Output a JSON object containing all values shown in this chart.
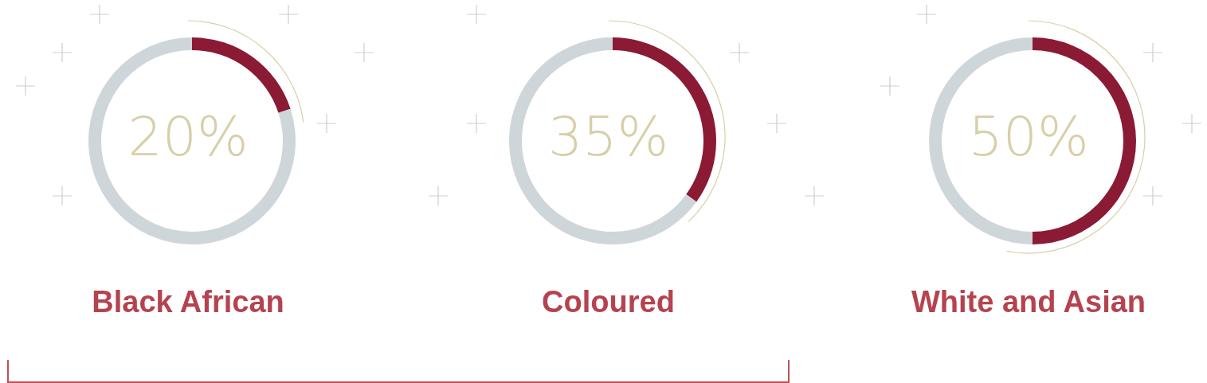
{
  "chart_data": [
    {
      "type": "donut",
      "title": "Black African",
      "categories": [
        null,
        null
      ],
      "values": [
        20,
        80
      ],
      "colors": [
        "#8b1a35",
        "#cfd6d9"
      ],
      "annotations": [
        "20%"
      ]
    },
    {
      "type": "donut",
      "title": "Coloured",
      "categories": [
        null,
        null
      ],
      "values": [
        35,
        65
      ],
      "colors": [
        "#8b1a35",
        "#cfd6d9"
      ],
      "annotations": [
        "35%"
      ]
    },
    {
      "type": "donut",
      "title": "White and Asian",
      "categories": [
        null,
        null
      ],
      "values": [
        50,
        50
      ],
      "colors": [
        "#8b1a35",
        "#cfd6d9"
      ],
      "annotations": [
        "50%"
      ]
    }
  ]
}
